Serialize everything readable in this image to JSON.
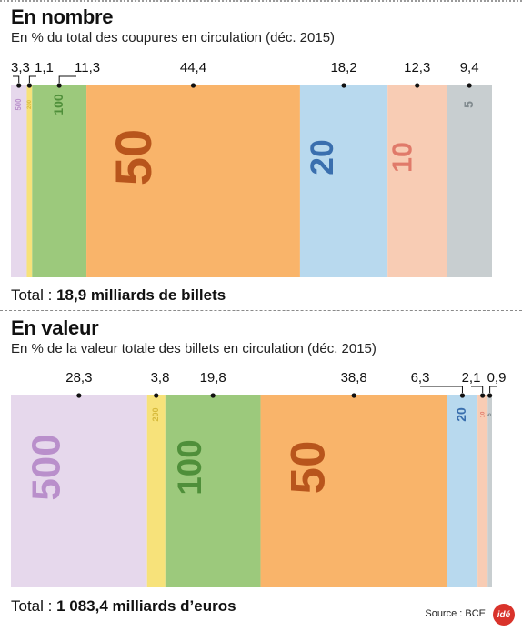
{
  "chart_data": [
    {
      "type": "bar",
      "title": "En nombre",
      "subtitle": "En % du total des coupures en circulation (déc. 2015)",
      "total_label": "Total : ",
      "total_value": "18,9 milliards de billets",
      "segments": [
        {
          "denomination": "500",
          "value": 3.3,
          "label": "3,3",
          "color": "#e6d8ec",
          "text_color": "#b98fcb"
        },
        {
          "denomination": "200",
          "value": 1.1,
          "label": "1,1",
          "color": "#f7e27a",
          "text_color": "#d6b93a"
        },
        {
          "denomination": "100",
          "value": 11.3,
          "label": "11,3",
          "color": "#9cc97c",
          "text_color": "#4f8f3a"
        },
        {
          "denomination": "50",
          "value": 44.4,
          "label": "44,4",
          "color": "#f9b46a",
          "text_color": "#b8551c"
        },
        {
          "denomination": "20",
          "value": 18.2,
          "label": "18,2",
          "color": "#b8d9ee",
          "text_color": "#3a6fae"
        },
        {
          "denomination": "10",
          "value": 12.3,
          "label": "12,3",
          "color": "#f8ccb4",
          "text_color": "#e07a6a"
        },
        {
          "denomination": "5",
          "value": 9.4,
          "label": "9,4",
          "color": "#c8ced0",
          "text_color": "#808a8e"
        }
      ]
    },
    {
      "type": "bar",
      "title": "En valeur",
      "subtitle": "En % de la valeur totale des billets en circulation (déc. 2015)",
      "total_label": "Total : ",
      "total_value": "1 083,4 milliards d’euros",
      "segments": [
        {
          "denomination": "500",
          "value": 28.3,
          "label": "28,3",
          "color": "#e6d8ec",
          "text_color": "#b98fcb"
        },
        {
          "denomination": "200",
          "value": 3.8,
          "label": "3,8",
          "color": "#f7e27a",
          "text_color": "#d6b93a"
        },
        {
          "denomination": "100",
          "value": 19.8,
          "label": "19,8",
          "color": "#9cc97c",
          "text_color": "#4f8f3a"
        },
        {
          "denomination": "50",
          "value": 38.8,
          "label": "38,8",
          "color": "#f9b46a",
          "text_color": "#b8551c"
        },
        {
          "denomination": "20",
          "value": 6.3,
          "label": "6,3",
          "color": "#b8d9ee",
          "text_color": "#3a6fae"
        },
        {
          "denomination": "10",
          "value": 2.1,
          "label": "2,1",
          "color": "#f8ccb4",
          "text_color": "#e07a6a"
        },
        {
          "denomination": "5",
          "value": 0.9,
          "label": "0,9",
          "color": "#c8ced0",
          "text_color": "#808a8e"
        }
      ]
    }
  ],
  "source": "Source : BCE",
  "logo_text": "idé"
}
